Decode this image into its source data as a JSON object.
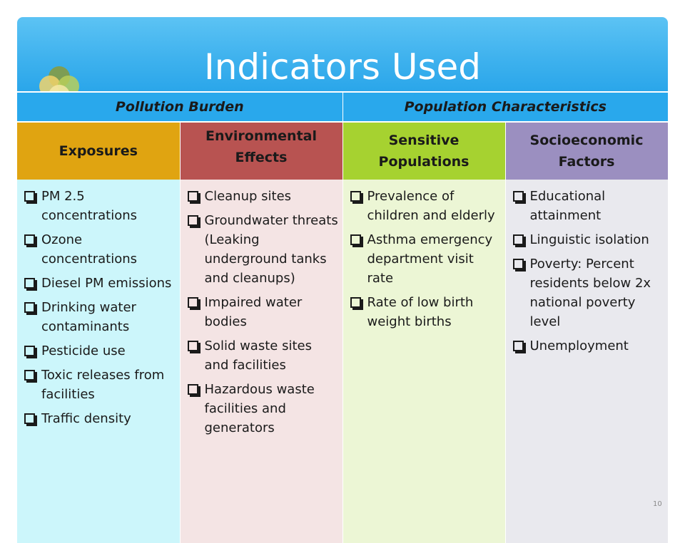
{
  "title": "Indicators Used",
  "groups": [
    "Pollution Burden",
    "Population Characteristics"
  ],
  "columns": [
    {
      "header": "Exposures",
      "items": [
        "PM 2.5 concentrations",
        "Ozone concentrations",
        "Diesel PM emissions",
        "Drinking water contaminants",
        "Pesticide use",
        "Toxic releases from facilities",
        "Traffic density"
      ]
    },
    {
      "header": "Environmental Effects",
      "items": [
        "Cleanup sites",
        "Groundwater threats (Leaking underground tanks and cleanups)",
        "Impaired water bodies",
        "Solid waste sites and facilities",
        "Hazardous waste facilities and generators"
      ]
    },
    {
      "header": "Sensitive Populations",
      "items": [
        "Prevalence of children and elderly",
        "Asthma emergency department visit rate",
        "Rate of low birth weight births"
      ]
    },
    {
      "header": "Socioeconomic Factors",
      "items": [
        "Educational attainment",
        "Linguistic isolation",
        "Poverty: Percent residents below 2x national poverty level",
        "Unemployment"
      ]
    }
  ],
  "page_number": "10",
  "colors": {
    "header": "#3fb2ee",
    "exposures": "#e0a411",
    "environmental_effects": "#b85351",
    "sensitive_populations": "#a6d230",
    "socioeconomic_factors": "#9b8fc0"
  }
}
